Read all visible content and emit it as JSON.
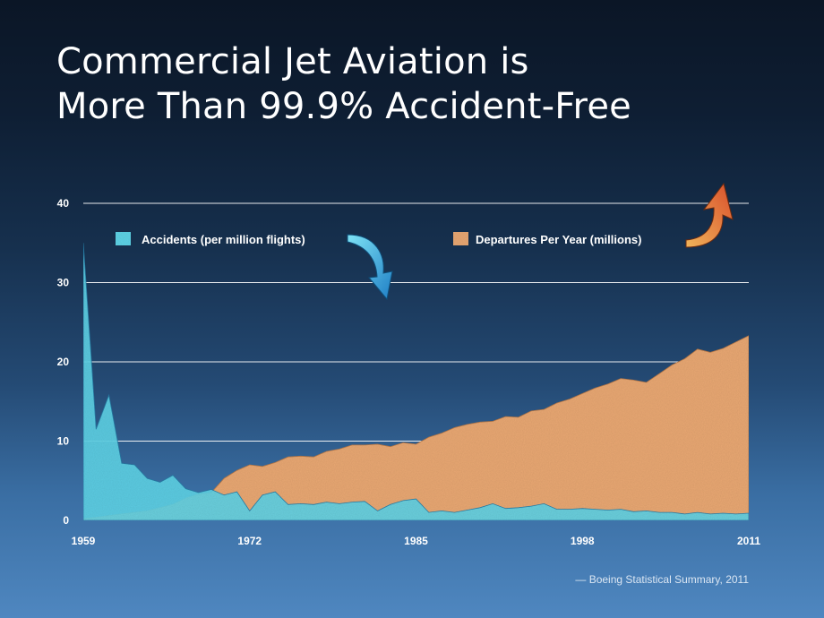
{
  "title_line1": "Commercial Jet Aviation is",
  "title_line2": "More Than 99.9% Accident-Free",
  "source": "— Boeing Statistical Summary, 2011",
  "colors": {
    "accidents": "#5fd3e6",
    "departures": "#e9a873",
    "down_arrow": "#2fa6d9",
    "up_arrow": "#e08a2e"
  },
  "icons": {
    "down_arrow": "down-arrow-icon",
    "up_arrow": "up-arrow-icon"
  },
  "chart_data": {
    "type": "area",
    "x": [
      1959,
      1960,
      1961,
      1962,
      1963,
      1964,
      1965,
      1966,
      1967,
      1968,
      1969,
      1970,
      1971,
      1972,
      1973,
      1974,
      1975,
      1976,
      1977,
      1978,
      1979,
      1980,
      1981,
      1982,
      1983,
      1984,
      1985,
      1986,
      1987,
      1988,
      1989,
      1990,
      1991,
      1992,
      1993,
      1994,
      1995,
      1996,
      1997,
      1998,
      1999,
      2000,
      2001,
      2002,
      2003,
      2004,
      2005,
      2006,
      2007,
      2008,
      2009,
      2010,
      2011
    ],
    "xticks": [
      "1959",
      "1972",
      "1985",
      "1998",
      "2011"
    ],
    "ylim": [
      0,
      40
    ],
    "yticks": [
      "0",
      "10",
      "20",
      "30",
      "40"
    ],
    "grid": true,
    "legend_position": "top",
    "series": [
      {
        "name": "Departures Per Year (millions)",
        "values": [
          0.2,
          0.4,
          0.6,
          0.8,
          1.0,
          1.2,
          1.6,
          2.0,
          2.8,
          3.3,
          3.5,
          5.3,
          6.3,
          7.0,
          6.8,
          7.3,
          8.0,
          8.1,
          8.0,
          8.7,
          9.0,
          9.5,
          9.5,
          9.6,
          9.3,
          9.8,
          9.6,
          10.5,
          11.0,
          11.7,
          12.1,
          12.4,
          12.5,
          13.1,
          13.0,
          13.8,
          14.0,
          14.8,
          15.3,
          16.0,
          16.7,
          17.2,
          17.9,
          17.7,
          17.4,
          18.5,
          19.6,
          20.4,
          21.6,
          21.2,
          21.7,
          22.5,
          23.3
        ]
      },
      {
        "name": "Accidents (per million flights)",
        "values": [
          35,
          11.5,
          15.8,
          7.2,
          7.0,
          5.3,
          4.8,
          5.7,
          4.0,
          3.5,
          3.9,
          3.2,
          3.6,
          1.2,
          3.2,
          3.6,
          2.0,
          2.1,
          2.0,
          2.3,
          2.1,
          2.3,
          2.4,
          1.2,
          2.0,
          2.5,
          2.7,
          1.0,
          1.2,
          1.0,
          1.3,
          1.6,
          2.1,
          1.5,
          1.6,
          1.8,
          2.1,
          1.4,
          1.4,
          1.5,
          1.4,
          1.3,
          1.4,
          1.1,
          1.2,
          1.0,
          1.0,
          0.8,
          1.0,
          0.8,
          0.9,
          0.8,
          0.9
        ]
      }
    ]
  }
}
